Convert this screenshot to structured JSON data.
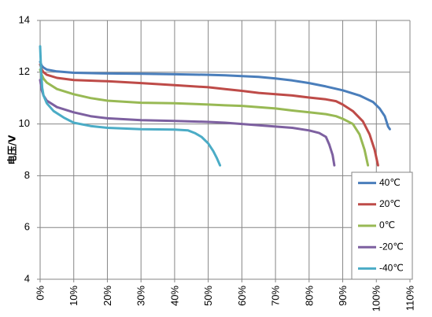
{
  "chart_data": {
    "type": "line",
    "title": "",
    "xlabel": "",
    "ylabel": "电压/V",
    "xlim": [
      0,
      110
    ],
    "ylim": [
      4,
      14
    ],
    "x_ticks": [
      "0%",
      "10%",
      "20%",
      "30%",
      "40%",
      "50%",
      "60%",
      "70%",
      "80%",
      "90%",
      "100%",
      "110%"
    ],
    "y_ticks": [
      "4",
      "6",
      "8",
      "10",
      "12",
      "14"
    ],
    "grid": true,
    "legend_position": "bottom-right",
    "series": [
      {
        "name": "40℃",
        "color": "#4a7ebb",
        "points": [
          [
            0,
            12.4
          ],
          [
            0.5,
            12.25
          ],
          [
            1,
            12.18
          ],
          [
            2,
            12.1
          ],
          [
            5,
            12.03
          ],
          [
            10,
            11.98
          ],
          [
            20,
            11.95
          ],
          [
            30,
            11.94
          ],
          [
            40,
            11.92
          ],
          [
            50,
            11.9
          ],
          [
            55,
            11.88
          ],
          [
            60,
            11.85
          ],
          [
            65,
            11.82
          ],
          [
            70,
            11.76
          ],
          [
            75,
            11.68
          ],
          [
            80,
            11.58
          ],
          [
            85,
            11.45
          ],
          [
            90,
            11.3
          ],
          [
            95,
            11.1
          ],
          [
            99,
            10.85
          ],
          [
            101,
            10.6
          ],
          [
            102.5,
            10.3
          ],
          [
            103.5,
            9.9
          ],
          [
            104,
            9.8
          ]
        ]
      },
      {
        "name": "20℃",
        "color": "#be4b48",
        "points": [
          [
            0,
            12.3
          ],
          [
            0.5,
            12.1
          ],
          [
            1,
            12.0
          ],
          [
            2,
            11.9
          ],
          [
            5,
            11.78
          ],
          [
            10,
            11.7
          ],
          [
            20,
            11.65
          ],
          [
            30,
            11.58
          ],
          [
            40,
            11.5
          ],
          [
            50,
            11.42
          ],
          [
            55,
            11.35
          ],
          [
            60,
            11.28
          ],
          [
            65,
            11.2
          ],
          [
            70,
            11.15
          ],
          [
            75,
            11.1
          ],
          [
            80,
            11.02
          ],
          [
            85,
            10.95
          ],
          [
            88,
            10.88
          ],
          [
            90,
            10.75
          ],
          [
            93,
            10.5
          ],
          [
            96,
            10.1
          ],
          [
            98,
            9.6
          ],
          [
            99.5,
            9.0
          ],
          [
            100.5,
            8.4
          ]
        ]
      },
      {
        "name": "0℃",
        "color": "#98b954",
        "points": [
          [
            0,
            12.1
          ],
          [
            0.5,
            11.9
          ],
          [
            1,
            11.75
          ],
          [
            2,
            11.6
          ],
          [
            5,
            11.35
          ],
          [
            10,
            11.15
          ],
          [
            15,
            11.0
          ],
          [
            20,
            10.9
          ],
          [
            30,
            10.82
          ],
          [
            40,
            10.8
          ],
          [
            50,
            10.75
          ],
          [
            55,
            10.72
          ],
          [
            60,
            10.7
          ],
          [
            65,
            10.65
          ],
          [
            70,
            10.6
          ],
          [
            75,
            10.52
          ],
          [
            80,
            10.45
          ],
          [
            85,
            10.38
          ],
          [
            88,
            10.3
          ],
          [
            90,
            10.2
          ],
          [
            93,
            10.0
          ],
          [
            95,
            9.6
          ],
          [
            96.5,
            9.0
          ],
          [
            97.5,
            8.4
          ]
        ]
      },
      {
        "name": "-20℃",
        "color": "#7d60a0",
        "points": [
          [
            0,
            11.7
          ],
          [
            0.5,
            11.3
          ],
          [
            1,
            11.1
          ],
          [
            2,
            10.9
          ],
          [
            5,
            10.65
          ],
          [
            10,
            10.45
          ],
          [
            15,
            10.3
          ],
          [
            20,
            10.22
          ],
          [
            30,
            10.15
          ],
          [
            40,
            10.12
          ],
          [
            50,
            10.08
          ],
          [
            55,
            10.05
          ],
          [
            60,
            10.0
          ],
          [
            65,
            9.95
          ],
          [
            70,
            9.9
          ],
          [
            75,
            9.85
          ],
          [
            80,
            9.75
          ],
          [
            83,
            9.65
          ],
          [
            85,
            9.5
          ],
          [
            86,
            9.2
          ],
          [
            87,
            8.8
          ],
          [
            87.5,
            8.4
          ]
        ]
      },
      {
        "name": "-40℃",
        "color": "#4bacc6",
        "points": [
          [
            0,
            13.0
          ],
          [
            0.3,
            12.0
          ],
          [
            0.6,
            11.4
          ],
          [
            1,
            11.1
          ],
          [
            2,
            10.8
          ],
          [
            4,
            10.5
          ],
          [
            7,
            10.25
          ],
          [
            10,
            10.05
          ],
          [
            15,
            9.92
          ],
          [
            20,
            9.85
          ],
          [
            30,
            9.8
          ],
          [
            40,
            9.78
          ],
          [
            44,
            9.75
          ],
          [
            46,
            9.65
          ],
          [
            48,
            9.5
          ],
          [
            50,
            9.25
          ],
          [
            51.5,
            8.95
          ],
          [
            52.5,
            8.7
          ],
          [
            53.5,
            8.4
          ]
        ]
      }
    ]
  }
}
